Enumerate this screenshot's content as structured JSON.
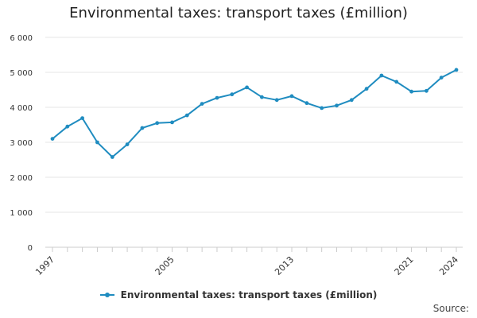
{
  "chart_data": {
    "type": "line",
    "title": "Environmental taxes: transport taxes (£million)",
    "x": [
      "1997",
      "1998",
      "1999",
      "2000",
      "2001",
      "2002",
      "2003",
      "2004",
      "2005",
      "2006",
      "2007",
      "2008",
      "2009",
      "2010",
      "2011",
      "2012",
      "2013",
      "2014",
      "2015",
      "2016",
      "2017",
      "2018",
      "2019",
      "2020",
      "2021",
      "2022",
      "2023",
      "2024"
    ],
    "series": [
      {
        "name": "Environmental taxes: transport taxes (£million)",
        "values": [
          3100,
          3450,
          3690,
          3000,
          2580,
          2940,
          3410,
          3550,
          3570,
          3770,
          4100,
          4270,
          4370,
          4570,
          4290,
          4210,
          4320,
          4120,
          3980,
          4050,
          4210,
          4530,
          4910,
          4730,
          4450,
          4470,
          4850,
          5070
        ]
      }
    ],
    "x_tick_labels": [
      "1997",
      "2005",
      "2013",
      "2021",
      "2024"
    ],
    "y_tick_labels": [
      "0",
      "1 000",
      "2 000",
      "3 000",
      "4 000",
      "5 000",
      "6 000"
    ],
    "ylim": [
      0,
      6000
    ],
    "xlabel": "",
    "ylabel": "",
    "grid": true,
    "legend_position": "bottom",
    "colors": {
      "line": "#1f8cc0",
      "grid": "#e6e6e6",
      "axis": "#cccccc"
    }
  },
  "source_label": "Source:"
}
